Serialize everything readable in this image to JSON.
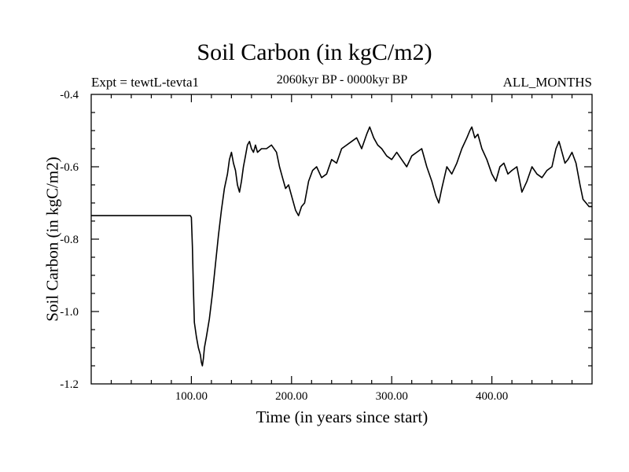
{
  "chart_data": {
    "type": "line",
    "title": "Soil Carbon (in kgC/m2)",
    "subtitle_left": "Expt = tewtL-tevta1",
    "subtitle_center": "2060kyr BP - 0000kyr BP",
    "subtitle_right": "ALL_MONTHS",
    "xlabel": "Time (in years since start)",
    "ylabel": "Soil Carbon (in kgC/m2)",
    "xlim": [
      0,
      500
    ],
    "ylim": [
      -1.2,
      -0.4
    ],
    "xticks": [
      100,
      200,
      300,
      400
    ],
    "xtick_labels": [
      "100.00",
      "200.00",
      "300.00",
      "400.00"
    ],
    "yticks": [
      -1.2,
      -1.0,
      -0.8,
      -0.6,
      -0.4
    ],
    "ytick_labels": [
      "-1.2",
      "-1.0",
      "-0.8",
      "-0.6",
      "-0.4"
    ],
    "grid": false,
    "series": [
      {
        "name": "Soil Carbon",
        "color": "#000000",
        "x": [
          0,
          99,
          100,
          101,
          102,
          103,
          105,
          107,
          109,
          110,
          111,
          112,
          113,
          115,
          118,
          121,
          124,
          127,
          130,
          133,
          136,
          138,
          140,
          142,
          144,
          146,
          148,
          150,
          152,
          154,
          156,
          158,
          160,
          162,
          164,
          166,
          170,
          175,
          180,
          185,
          188,
          191,
          194,
          197,
          200,
          204,
          207,
          210,
          213,
          217,
          221,
          225,
          230,
          235,
          240,
          245,
          250,
          255,
          260,
          265,
          270,
          275,
          278,
          282,
          286,
          290,
          295,
          300,
          305,
          310,
          315,
          320,
          325,
          330,
          335,
          340,
          344,
          347,
          350,
          355,
          360,
          365,
          370,
          375,
          378,
          380,
          383,
          386,
          390,
          395,
          400,
          404,
          408,
          412,
          416,
          420,
          425,
          430,
          435,
          440,
          445,
          450,
          455,
          460,
          464,
          467,
          470,
          473,
          476,
          480,
          484,
          488,
          491,
          494,
          497,
          500
        ],
        "values": [
          -0.735,
          -0.735,
          -0.74,
          -0.82,
          -0.93,
          -1.03,
          -1.07,
          -1.1,
          -1.12,
          -1.14,
          -1.15,
          -1.13,
          -1.1,
          -1.07,
          -1.02,
          -0.95,
          -0.87,
          -0.79,
          -0.72,
          -0.66,
          -0.62,
          -0.58,
          -0.56,
          -0.59,
          -0.61,
          -0.65,
          -0.67,
          -0.64,
          -0.6,
          -0.57,
          -0.54,
          -0.53,
          -0.55,
          -0.56,
          -0.54,
          -0.56,
          -0.55,
          -0.55,
          -0.54,
          -0.56,
          -0.6,
          -0.63,
          -0.66,
          -0.65,
          -0.68,
          -0.72,
          -0.735,
          -0.71,
          -0.7,
          -0.64,
          -0.61,
          -0.6,
          -0.63,
          -0.62,
          -0.58,
          -0.59,
          -0.55,
          -0.54,
          -0.53,
          -0.52,
          -0.55,
          -0.51,
          -0.49,
          -0.52,
          -0.54,
          -0.55,
          -0.57,
          -0.58,
          -0.56,
          -0.58,
          -0.6,
          -0.57,
          -0.56,
          -0.55,
          -0.6,
          -0.64,
          -0.68,
          -0.7,
          -0.66,
          -0.6,
          -0.62,
          -0.59,
          -0.55,
          -0.52,
          -0.5,
          -0.49,
          -0.52,
          -0.51,
          -0.55,
          -0.58,
          -0.62,
          -0.64,
          -0.6,
          -0.59,
          -0.62,
          -0.61,
          -0.6,
          -0.67,
          -0.64,
          -0.6,
          -0.62,
          -0.63,
          -0.61,
          -0.6,
          -0.55,
          -0.53,
          -0.56,
          -0.59,
          -0.58,
          -0.56,
          -0.59,
          -0.65,
          -0.69,
          -0.7,
          -0.71,
          -0.71
        ]
      }
    ]
  }
}
